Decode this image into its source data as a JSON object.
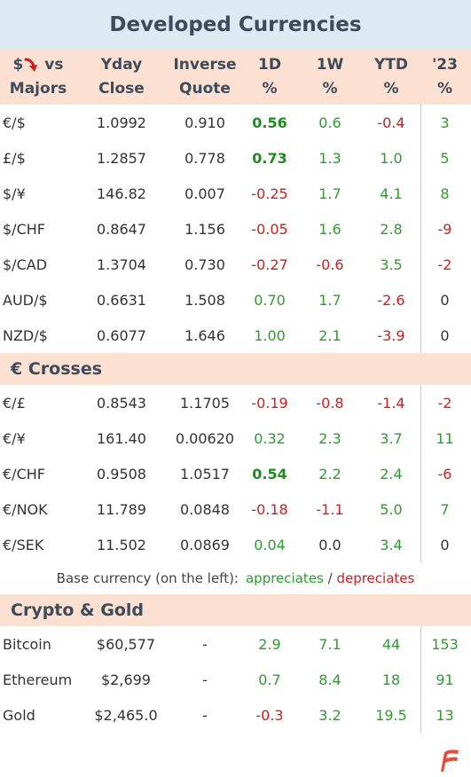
{
  "title": "Developed Currencies",
  "header": {
    "col0_top": "$",
    "col0_mid": "vs",
    "col0_bot": "Majors",
    "col1_top": "Yday",
    "col1_bot": "Close",
    "col2_top": "Inverse",
    "col2_bot": "Quote",
    "col3_top": "1D",
    "col3_bot": "%",
    "col4_top": "1W",
    "col4_bot": "%",
    "col5_top": "YTD",
    "col5_bot": "%",
    "col6_top": "'23",
    "col6_bot": "%"
  },
  "majors": [
    {
      "pair": "€/$",
      "close": "1.0992",
      "inverse": "0.910",
      "d1": "0.56",
      "w1": "0.6",
      "ytd": "-0.4",
      "y23": "3"
    },
    {
      "pair": "£/$",
      "close": "1.2857",
      "inverse": "0.778",
      "d1": "0.73",
      "w1": "1.3",
      "ytd": "1.0",
      "y23": "5"
    },
    {
      "pair": "$/¥",
      "close": "146.82",
      "inverse": "0.007",
      "d1": "-0.25",
      "w1": "1.7",
      "ytd": "4.1",
      "y23": "8"
    },
    {
      "pair": "$/CHF",
      "close": "0.8647",
      "inverse": "1.156",
      "d1": "-0.05",
      "w1": "1.6",
      "ytd": "2.8",
      "y23": "-9"
    },
    {
      "pair": "$/CAD",
      "close": "1.3704",
      "inverse": "0.730",
      "d1": "-0.27",
      "w1": "-0.6",
      "ytd": "3.5",
      "y23": "-2"
    },
    {
      "pair": "AUD/$",
      "close": "0.6631",
      "inverse": "1.508",
      "d1": "0.70",
      "w1": "1.7",
      "ytd": "-2.6",
      "y23": "0"
    },
    {
      "pair": "NZD/$",
      "close": "0.6077",
      "inverse": "1.646",
      "d1": "1.00",
      "w1": "2.1",
      "ytd": "-3.9",
      "y23": "0"
    }
  ],
  "crosses_title": "€ Crosses",
  "crosses": [
    {
      "pair": "€/£",
      "close": "0.8543",
      "inverse": "1.1705",
      "d1": "-0.19",
      "w1": "-0.8",
      "ytd": "-1.4",
      "y23": "-2"
    },
    {
      "pair": "€/¥",
      "close": "161.40",
      "inverse": "0.00620",
      "d1": "0.32",
      "w1": "2.3",
      "ytd": "3.7",
      "y23": "11"
    },
    {
      "pair": "€/CHF",
      "close": "0.9508",
      "inverse": "1.0517",
      "d1": "0.54",
      "w1": "2.2",
      "ytd": "2.4",
      "y23": "-6"
    },
    {
      "pair": "€/NOK",
      "close": "11.789",
      "inverse": "0.0848",
      "d1": "-0.18",
      "w1": "-1.1",
      "ytd": "5.0",
      "y23": "7"
    },
    {
      "pair": "€/SEK",
      "close": "11.502",
      "inverse": "0.0869",
      "d1": "0.04",
      "w1": "0.0",
      "ytd": "3.4",
      "y23": "0"
    }
  ],
  "legend": {
    "prefix": "Base currency (on the left):",
    "appreciates": "appreciates",
    "separator": "/",
    "depreciates": "depreciates"
  },
  "crypto_title": "Crypto & Gold",
  "crypto": [
    {
      "name": "Bitcoin",
      "close": "$60,577",
      "inverse": "-",
      "d1": "2.9",
      "w1": "7.1",
      "ytd": "44",
      "y23": "153"
    },
    {
      "name": "Ethereum",
      "close": "$2,699",
      "inverse": "-",
      "d1": "0.7",
      "w1": "8.4",
      "ytd": "18",
      "y23": "91"
    },
    {
      "name": "Gold",
      "close": "$2,465.0",
      "inverse": "-",
      "d1": "-0.3",
      "w1": "3.2",
      "ytd": "19.5",
      "y23": "13"
    }
  ],
  "colors": {
    "positive": "#2e9c2e",
    "negative": "#cc1f1f",
    "header_bg": "#fce0d2",
    "title_bg": "#dde9f3"
  },
  "icons": {
    "header_arrow": "red-down-arrow-icon",
    "logo": "brand-logo-icon"
  }
}
